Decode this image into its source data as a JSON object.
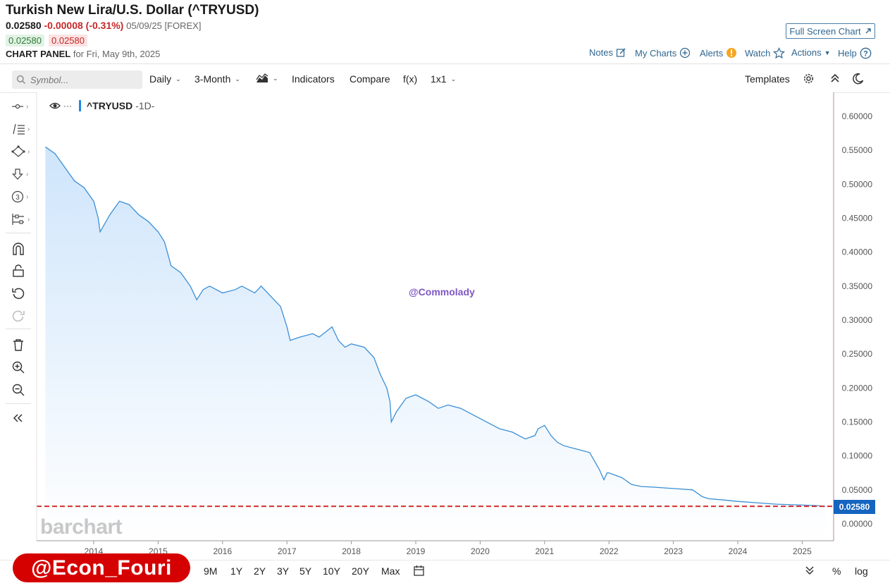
{
  "header": {
    "title": "Turkish New Lira/U.S. Dollar (^TRYUSD)",
    "last_price": "0.02580",
    "change": "-0.00008 (-0.31%)",
    "quote_date": "05/09/25 [FOREX]",
    "bid": "0.02580",
    "ask": "0.02580",
    "panel_label": "CHART PANEL",
    "panel_date": "for Fri, May 9th, 2025",
    "fullscreen_label": "Full Screen Chart",
    "nav": {
      "notes": "Notes",
      "my_charts": "My Charts",
      "alerts": "Alerts",
      "watch": "Watch",
      "actions": "Actions",
      "help": "Help"
    }
  },
  "toolbar": {
    "symbol_placeholder": "Symbol...",
    "interval": "Daily",
    "range": "3-Month",
    "indicators": "Indicators",
    "compare": "Compare",
    "fx": "f(x)",
    "layout": "1x1",
    "templates": "Templates"
  },
  "chart": {
    "series_symbol": "^TRYUSD",
    "series_interval": "-1D-",
    "watermark": "@Commolady",
    "logo": "barchart",
    "last_value_tag": "0.02580"
  },
  "chart_data": {
    "type": "area",
    "title": "Turkish New Lira/U.S. Dollar (^TRYUSD)",
    "xlabel": "",
    "ylabel": "",
    "ylim": [
      0,
      0.6
    ],
    "yticks": [
      "0.60000",
      "0.55000",
      "0.50000",
      "0.45000",
      "0.40000",
      "0.35000",
      "0.30000",
      "0.25000",
      "0.20000",
      "0.15000",
      "0.10000",
      "0.05000",
      "0.00000"
    ],
    "xticks": [
      "2014",
      "2015",
      "2016",
      "2017",
      "2018",
      "2019",
      "2020",
      "2021",
      "2022",
      "2023",
      "2024",
      "2025"
    ],
    "last_price_line": 0.0258,
    "series": [
      {
        "x": [
          2013.25,
          2013.4,
          2013.55,
          2013.7,
          2013.85,
          2014.0,
          2014.07,
          2014.1,
          2014.25,
          2014.4,
          2014.55,
          2014.7,
          2014.85,
          2015.0,
          2015.1,
          2015.2,
          2015.35,
          2015.5,
          2015.6,
          2015.7,
          2015.8,
          2016.0,
          2016.2,
          2016.3,
          2016.5,
          2016.6,
          2016.8,
          2016.9,
          2017.0,
          2017.05,
          2017.2,
          2017.4,
          2017.5,
          2017.7,
          2017.8,
          2017.9,
          2018.0,
          2018.2,
          2018.35,
          2018.45,
          2018.55,
          2018.6,
          2018.62,
          2018.7,
          2018.85,
          2019.0,
          2019.2,
          2019.35,
          2019.5,
          2019.7,
          2019.9,
          2020.0,
          2020.2,
          2020.3,
          2020.5,
          2020.7,
          2020.85,
          2020.9,
          2021.0,
          2021.1,
          2021.2,
          2021.3,
          2021.5,
          2021.7,
          2021.85,
          2021.92,
          2021.97,
          2022.0,
          2022.2,
          2022.35,
          2022.5,
          2022.7,
          2023.0,
          2023.3,
          2023.45,
          2023.55,
          2023.8,
          2024.0,
          2024.3,
          2024.6,
          2024.9,
          2025.2,
          2025.36
        ],
        "y": [
          0.555,
          0.545,
          0.525,
          0.505,
          0.495,
          0.475,
          0.45,
          0.43,
          0.455,
          0.475,
          0.47,
          0.455,
          0.445,
          0.43,
          0.415,
          0.38,
          0.37,
          0.35,
          0.33,
          0.345,
          0.35,
          0.34,
          0.345,
          0.35,
          0.34,
          0.35,
          0.33,
          0.32,
          0.29,
          0.27,
          0.275,
          0.28,
          0.275,
          0.29,
          0.27,
          0.26,
          0.265,
          0.26,
          0.245,
          0.22,
          0.2,
          0.18,
          0.15,
          0.165,
          0.185,
          0.19,
          0.18,
          0.17,
          0.175,
          0.17,
          0.16,
          0.155,
          0.145,
          0.14,
          0.135,
          0.125,
          0.13,
          0.14,
          0.145,
          0.13,
          0.12,
          0.115,
          0.11,
          0.105,
          0.08,
          0.065,
          0.075,
          0.075,
          0.068,
          0.058,
          0.055,
          0.054,
          0.052,
          0.05,
          0.04,
          0.037,
          0.035,
          0.033,
          0.031,
          0.029,
          0.028,
          0.027,
          0.0258
        ]
      }
    ],
    "colors": {
      "line": "#3a8fd6",
      "fill": "#e3f1ff",
      "price_line": "#d32f2f",
      "tag": "#1565c0"
    },
    "grid": false,
    "legend": "none"
  },
  "periods": [
    "9M",
    "1Y",
    "2Y",
    "3Y",
    "5Y",
    "10Y",
    "20Y",
    "Max"
  ],
  "bottom": {
    "percent": "%",
    "log": "log"
  },
  "overlay_badge": "@Econ_Fouri"
}
